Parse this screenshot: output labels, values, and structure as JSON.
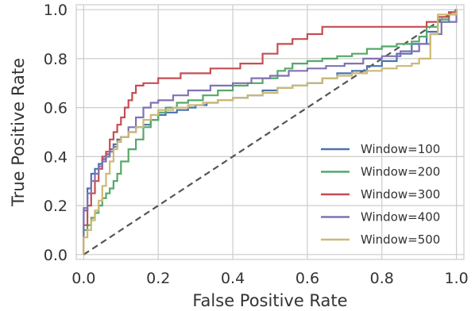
{
  "chart_data": {
    "type": "line",
    "xlabel": "False Positive Rate",
    "ylabel": "True Positive Rate",
    "xlim": [
      -0.02,
      1.02
    ],
    "ylim": [
      -0.02,
      1.02
    ],
    "xticks": [
      "0.0",
      "0.2",
      "0.4",
      "0.6",
      "0.8",
      "1.0"
    ],
    "yticks": [
      "0.0",
      "0.2",
      "0.4",
      "0.6",
      "0.8",
      "1.0"
    ],
    "grid": true,
    "legend_position": "lower-right",
    "diagonal": {
      "x": [
        0,
        1
      ],
      "y": [
        0,
        1
      ],
      "color": "#555555",
      "style": "dashed"
    },
    "series": [
      {
        "name": "Window=100",
        "color": "#4c72b0",
        "x": [
          0.0,
          0.0,
          0.01,
          0.01,
          0.02,
          0.02,
          0.03,
          0.04,
          0.05,
          0.06,
          0.07,
          0.08,
          0.09,
          0.1,
          0.12,
          0.14,
          0.16,
          0.18,
          0.2,
          0.22,
          0.25,
          0.28,
          0.3,
          0.33,
          0.36,
          0.4,
          0.44,
          0.48,
          0.52,
          0.56,
          0.6,
          0.64,
          0.68,
          0.72,
          0.76,
          0.8,
          0.84,
          0.88,
          0.92,
          0.95,
          0.98,
          1.0
        ],
        "y": [
          0.0,
          0.18,
          0.2,
          0.27,
          0.3,
          0.33,
          0.35,
          0.37,
          0.39,
          0.41,
          0.43,
          0.45,
          0.47,
          0.48,
          0.5,
          0.52,
          0.53,
          0.55,
          0.57,
          0.58,
          0.59,
          0.6,
          0.61,
          0.62,
          0.63,
          0.64,
          0.65,
          0.67,
          0.68,
          0.69,
          0.7,
          0.72,
          0.74,
          0.75,
          0.77,
          0.79,
          0.82,
          0.86,
          0.91,
          0.95,
          0.98,
          1.0
        ]
      },
      {
        "name": "Window=200",
        "color": "#55a868",
        "x": [
          0.0,
          0.0,
          0.01,
          0.02,
          0.03,
          0.04,
          0.05,
          0.06,
          0.07,
          0.08,
          0.09,
          0.1,
          0.12,
          0.14,
          0.16,
          0.18,
          0.2,
          0.22,
          0.25,
          0.28,
          0.32,
          0.36,
          0.4,
          0.44,
          0.48,
          0.52,
          0.54,
          0.56,
          0.6,
          0.64,
          0.68,
          0.72,
          0.76,
          0.8,
          0.84,
          0.88,
          0.9,
          0.92,
          0.95,
          0.98,
          1.0
        ],
        "y": [
          0.0,
          0.1,
          0.12,
          0.15,
          0.17,
          0.2,
          0.23,
          0.25,
          0.27,
          0.3,
          0.33,
          0.38,
          0.43,
          0.47,
          0.52,
          0.55,
          0.58,
          0.6,
          0.62,
          0.63,
          0.65,
          0.67,
          0.69,
          0.7,
          0.72,
          0.75,
          0.76,
          0.78,
          0.79,
          0.8,
          0.81,
          0.82,
          0.84,
          0.85,
          0.86,
          0.87,
          0.89,
          0.93,
          0.96,
          0.99,
          1.0
        ]
      },
      {
        "name": "Window=300",
        "color": "#c44e52",
        "x": [
          0.0,
          0.0,
          0.01,
          0.02,
          0.03,
          0.04,
          0.05,
          0.06,
          0.07,
          0.08,
          0.09,
          0.1,
          0.11,
          0.12,
          0.13,
          0.14,
          0.16,
          0.2,
          0.26,
          0.34,
          0.42,
          0.48,
          0.52,
          0.56,
          0.6,
          0.64,
          0.7,
          0.76,
          0.82,
          0.88,
          0.92,
          0.95,
          0.98,
          1.0
        ],
        "y": [
          0.0,
          0.12,
          0.2,
          0.25,
          0.3,
          0.35,
          0.4,
          0.42,
          0.47,
          0.5,
          0.53,
          0.56,
          0.6,
          0.63,
          0.66,
          0.69,
          0.7,
          0.72,
          0.74,
          0.76,
          0.78,
          0.82,
          0.86,
          0.88,
          0.9,
          0.93,
          0.93,
          0.93,
          0.93,
          0.93,
          0.95,
          0.97,
          0.99,
          1.0
        ]
      },
      {
        "name": "Window=400",
        "color": "#8172b2",
        "x": [
          0.0,
          0.0,
          0.01,
          0.02,
          0.03,
          0.04,
          0.05,
          0.06,
          0.07,
          0.08,
          0.09,
          0.1,
          0.12,
          0.14,
          0.16,
          0.18,
          0.2,
          0.24,
          0.28,
          0.34,
          0.4,
          0.45,
          0.5,
          0.55,
          0.6,
          0.65,
          0.7,
          0.75,
          0.8,
          0.85,
          0.9,
          0.93,
          0.96,
          1.0
        ],
        "y": [
          0.0,
          0.19,
          0.25,
          0.3,
          0.33,
          0.36,
          0.38,
          0.4,
          0.42,
          0.44,
          0.46,
          0.48,
          0.52,
          0.56,
          0.6,
          0.62,
          0.63,
          0.65,
          0.67,
          0.69,
          0.7,
          0.72,
          0.73,
          0.75,
          0.76,
          0.77,
          0.78,
          0.8,
          0.81,
          0.83,
          0.86,
          0.9,
          0.95,
          1.0
        ]
      },
      {
        "name": "Window=500",
        "color": "#ccb974",
        "x": [
          0.0,
          0.0,
          0.01,
          0.02,
          0.03,
          0.04,
          0.05,
          0.06,
          0.07,
          0.08,
          0.09,
          0.1,
          0.12,
          0.14,
          0.16,
          0.18,
          0.2,
          0.24,
          0.28,
          0.32,
          0.36,
          0.4,
          0.44,
          0.48,
          0.52,
          0.56,
          0.6,
          0.64,
          0.68,
          0.72,
          0.76,
          0.8,
          0.84,
          0.88,
          0.9,
          0.93,
          0.95,
          1.0
        ],
        "y": [
          0.0,
          0.07,
          0.1,
          0.14,
          0.18,
          0.22,
          0.28,
          0.33,
          0.38,
          0.43,
          0.46,
          0.48,
          0.5,
          0.52,
          0.55,
          0.57,
          0.59,
          0.6,
          0.61,
          0.62,
          0.63,
          0.64,
          0.65,
          0.66,
          0.68,
          0.69,
          0.7,
          0.72,
          0.73,
          0.74,
          0.75,
          0.76,
          0.77,
          0.78,
          0.8,
          0.9,
          0.98,
          1.0
        ]
      }
    ]
  }
}
